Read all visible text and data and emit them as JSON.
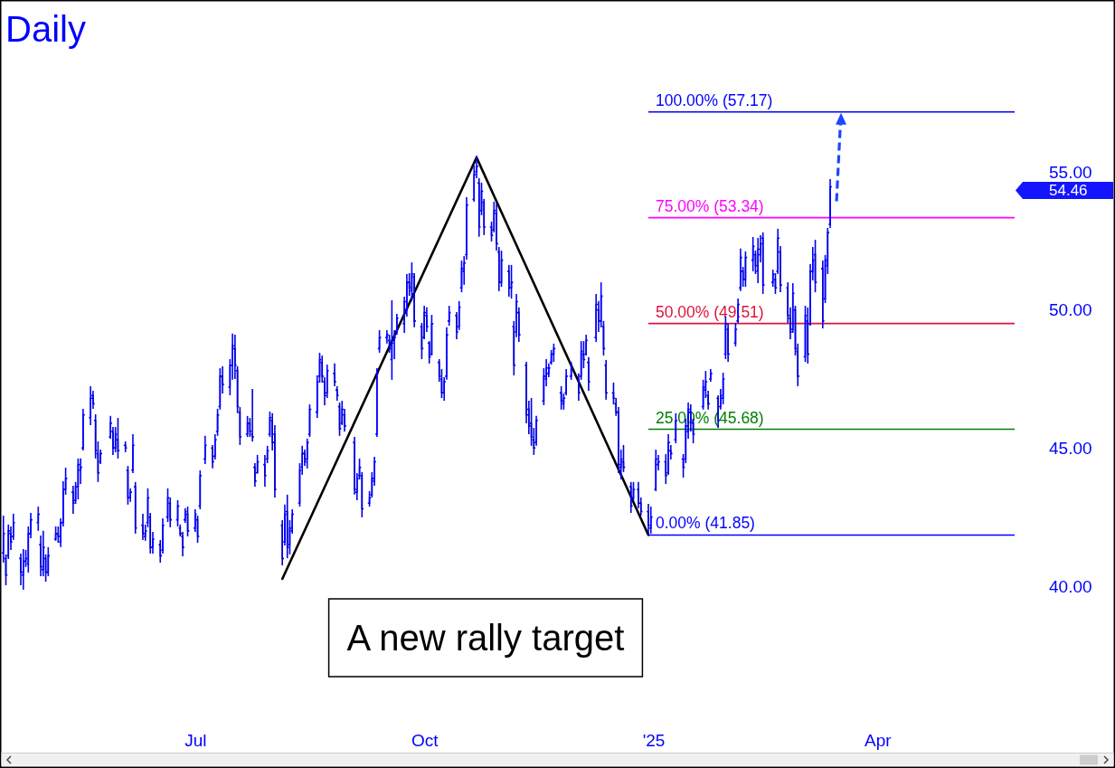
{
  "chart_data": {
    "type": "candlestick",
    "title": "Daily",
    "xlim": [
      "2024-04-14",
      "2025-07-05"
    ],
    "xticks": [
      {
        "value": "2024-07-01",
        "label": "Jul"
      },
      {
        "value": "2024-10-01",
        "label": "Oct"
      },
      {
        "value": "2025-01-01",
        "label": "'25"
      },
      {
        "value": "2025-04-01",
        "label": "Apr"
      }
    ],
    "ylim": [
      33.97,
      61.19
    ],
    "yticks": [
      {
        "value": 40,
        "label": "40.00"
      },
      {
        "value": 45,
        "label": "45.00"
      },
      {
        "value": 50,
        "label": "50.00"
      },
      {
        "value": 55,
        "label": "55.00"
      }
    ],
    "ref_lines": [
      {
        "axis": "y",
        "value": 57.17,
        "label": "100.00% (57.17)",
        "color": "#0000ff"
      },
      {
        "axis": "y",
        "value": 53.34,
        "label": "75.00% (53.34)",
        "color": "#ff00ff"
      },
      {
        "axis": "y",
        "value": 49.51,
        "label": "50.00% (49.51)",
        "color": "#dc143c"
      },
      {
        "axis": "y",
        "value": 45.68,
        "label": "25.00% (45.68)",
        "color": "#008000"
      },
      {
        "axis": "y",
        "value": 41.85,
        "label": "0.00% (41.85)",
        "color": "#0000ff"
      }
    ],
    "annotations": [
      "A new rally target",
      "54.46"
    ],
    "series": [
      {
        "type": "line",
        "color": "#000000",
        "x": [
          "2024-08-05",
          "2024-10-22",
          "2024-12-30"
        ],
        "values": [
          40.26,
          55.52,
          41.85
        ]
      },
      {
        "colors": [
          "#0000ff",
          "#0000d9",
          "#0000ff",
          "#0000d9",
          "#0000ff",
          "#0000d9",
          "#0000ff",
          "#0000ff",
          "#0000ff",
          "#0000ff",
          "#0000ff",
          "#0000d9",
          "#0000ff",
          "#0000d9",
          "#0000ff",
          "#0000ff",
          "#0000d9",
          "#0000ff",
          "#0000ff",
          "#0000ff",
          "#0000d9",
          "#0000ff",
          "#0000ff",
          "#0000ff",
          "#0000ff",
          "#0000ff",
          "#0000d9",
          "#0000d9",
          "#0000d9",
          "#0000ff",
          "#0000ff",
          "#0000d9",
          "#0000ff",
          "#0000d9",
          "#0000d9",
          "#0000d9",
          "#0000ff",
          "#0000ff",
          "#0000d9",
          "#0000d9",
          "#0000ff",
          "#0000ff",
          "#0000d9",
          "#0000ff",
          "#0000d9",
          "#0000ff",
          "#0000ff",
          "#0000d9",
          "#0000ff",
          "#0000d9",
          "#0000d9",
          "#0000ff",
          "#0000d9",
          "#0000ff",
          "#0000d9",
          "#0000ff",
          "#0000ff",
          "#0000d9",
          "#0000ff",
          "#0000ff",
          "#0000ff",
          "#0000d9",
          "#0000ff",
          "#0000ff",
          "#0000d9",
          "#0000d9",
          "#0000d9",
          "#0000ff",
          "#0000d9",
          "#0000d9",
          "#0000d9",
          "#0000ff",
          "#0000d9",
          "#0000ff",
          "#0000ff",
          "#0000d9",
          "#0000d9",
          "#0000d9",
          "#0000ff",
          "#0000d9",
          "#0000ff",
          "#0000ff",
          "#0000ff",
          "#0000ff",
          "#0000d9",
          "#0000ff",
          "#0000ff",
          "#0000ff",
          "#0000ff",
          "#0000d9",
          "#0000d9",
          "#0000ff",
          "#0000d9",
          "#0000d9",
          "#0000d9",
          "#0000ff",
          "#0000d9",
          "#0000d9",
          "#0000ff",
          "#0000ff",
          "#0000d9",
          "#0000ff",
          "#0000ff",
          "#0000ff",
          "#0000ff",
          "#0000ff",
          "#0000ff",
          "#0000d9",
          "#0000ff",
          "#0000ff",
          "#0000ff",
          "#0000ff",
          "#0000ff",
          "#0000d9",
          "#0000ff",
          "#0000d9",
          "#0000d9",
          "#0000ff",
          "#0000d9",
          "#0000d9",
          "#0000ff",
          "#0000d9",
          "#0000d9",
          "#0000ff",
          "#0000ff",
          "#0000ff",
          "#0000d9",
          "#0000ff",
          "#0000ff",
          "#0000ff",
          "#0000ff",
          "#0000ff",
          "#0000ff",
          "#0000d9",
          "#0000ff",
          "#0000d9",
          "#0000d9",
          "#0000ff",
          "#0000d9",
          "#0000d9",
          "#0000ff",
          "#0000d9",
          "#0000ff",
          "#0000d9",
          "#0000ff",
          "#0000d9",
          "#0000d9",
          "#0000d9",
          "#0000d9",
          "#0000d9",
          "#0000ff",
          "#0000ff",
          "#0000ff",
          "#0000ff",
          "#0000ff",
          "#0000ff",
          "#0000d9",
          "#0000ff",
          "#0000ff",
          "#0000ff",
          "#0000d9",
          "#0000ff",
          "#0000d9",
          "#0000ff",
          "#0000d9",
          "#0000ff",
          "#0000d9",
          "#0000ff",
          "#0000d9",
          "#0000d9",
          "#0000d9",
          "#0000d9",
          "#0000d9",
          "#0000ff",
          "#0000d9",
          "#0000d9",
          "#0000ff",
          "#0000d9",
          "#0000d9",
          "#0000d9",
          "#0000ff",
          "#0000ff",
          "#0000ff",
          "#0000d9",
          "#0000ff",
          "#0000d9",
          "#0000ff",
          "#0000d9",
          "#0000ff",
          "#0000ff",
          "#0000d9",
          "#0000d9",
          "#0000ff",
          "#0000ff",
          "#0000d9",
          "#0000ff",
          "#0000d9",
          "#0000ff",
          "#0000ff",
          "#0000ff",
          "#0000d9",
          "#0000ff",
          "#0000ff",
          "#0000ff",
          "#0000d9",
          "#0000ff",
          "#0000ff",
          "#0000d9",
          "#0000ff",
          "#0000ff",
          "#0000d9",
          "#0000ff",
          "#0000d9",
          "#0000ff",
          "#0000d9",
          "#0000d9",
          "#0000d9",
          "#0000ff",
          "#0000d9",
          "#0000d9",
          "#0000ff",
          "#0000d9",
          "#0000ff",
          "#0000ff",
          "#0000d9",
          "#0000d9",
          "#0000ff",
          "#0000ff",
          "#0000ff"
        ],
        "x": [
          "2024-04-15",
          "2024-04-16",
          "2024-04-17",
          "2024-04-18",
          "2024-04-19",
          "2024-04-22",
          "2024-04-23",
          "2024-04-24",
          "2024-04-25",
          "2024-04-26",
          "2024-04-29",
          "2024-04-30",
          "2024-05-01",
          "2024-05-02",
          "2024-05-03",
          "2024-05-06",
          "2024-05-07",
          "2024-05-08",
          "2024-05-09",
          "2024-05-10",
          "2024-05-13",
          "2024-05-14",
          "2024-05-15",
          "2024-05-16",
          "2024-05-17",
          "2024-05-20",
          "2024-05-21",
          "2024-05-22",
          "2024-05-23",
          "2024-05-24",
          "2024-05-28",
          "2024-05-29",
          "2024-05-30",
          "2024-05-31",
          "2024-06-03",
          "2024-06-04",
          "2024-06-05",
          "2024-06-06",
          "2024-06-07",
          "2024-06-10",
          "2024-06-11",
          "2024-06-12",
          "2024-06-13",
          "2024-06-14",
          "2024-06-17",
          "2024-06-18",
          "2024-06-20",
          "2024-06-21",
          "2024-06-24",
          "2024-06-25",
          "2024-06-26",
          "2024-06-27",
          "2024-06-28",
          "2024-07-01",
          "2024-07-02",
          "2024-07-03",
          "2024-07-05",
          "2024-07-08",
          "2024-07-09",
          "2024-07-10",
          "2024-07-11",
          "2024-07-12",
          "2024-07-15",
          "2024-07-16",
          "2024-07-17",
          "2024-07-18",
          "2024-07-19",
          "2024-07-22",
          "2024-07-23",
          "2024-07-24",
          "2024-07-25",
          "2024-07-26",
          "2024-07-29",
          "2024-07-30",
          "2024-07-31",
          "2024-08-01",
          "2024-08-02",
          "2024-08-05",
          "2024-08-06",
          "2024-08-07",
          "2024-08-08",
          "2024-08-09",
          "2024-08-12",
          "2024-08-13",
          "2024-08-14",
          "2024-08-15",
          "2024-08-16",
          "2024-08-19",
          "2024-08-20",
          "2024-08-21",
          "2024-08-22",
          "2024-08-23",
          "2024-08-26",
          "2024-08-27",
          "2024-08-28",
          "2024-08-29",
          "2024-08-30",
          "2024-09-03",
          "2024-09-04",
          "2024-09-05",
          "2024-09-06",
          "2024-09-09",
          "2024-09-10",
          "2024-09-11",
          "2024-09-12",
          "2024-09-13",
          "2024-09-16",
          "2024-09-17",
          "2024-09-18",
          "2024-09-19",
          "2024-09-20",
          "2024-09-23",
          "2024-09-24",
          "2024-09-25",
          "2024-09-26",
          "2024-09-27",
          "2024-09-30",
          "2024-10-01",
          "2024-10-02",
          "2024-10-03",
          "2024-10-04",
          "2024-10-07",
          "2024-10-08",
          "2024-10-09",
          "2024-10-10",
          "2024-10-11",
          "2024-10-14",
          "2024-10-15",
          "2024-10-16",
          "2024-10-17",
          "2024-10-18",
          "2024-10-21",
          "2024-10-22",
          "2024-10-23",
          "2024-10-24",
          "2024-10-25",
          "2024-10-28",
          "2024-10-29",
          "2024-10-30",
          "2024-10-31",
          "2024-11-01",
          "2024-11-04",
          "2024-11-05",
          "2024-11-06",
          "2024-11-07",
          "2024-11-08",
          "2024-11-11",
          "2024-11-12",
          "2024-11-13",
          "2024-11-14",
          "2024-11-15",
          "2024-11-18",
          "2024-11-19",
          "2024-11-20",
          "2024-11-21",
          "2024-11-22",
          "2024-11-25",
          "2024-11-26",
          "2024-11-27",
          "2024-11-29",
          "2024-12-02",
          "2024-12-03",
          "2024-12-04",
          "2024-12-05",
          "2024-12-06",
          "2024-12-09",
          "2024-12-10",
          "2024-12-11",
          "2024-12-12",
          "2024-12-13",
          "2024-12-16",
          "2024-12-17",
          "2024-12-18",
          "2024-12-19",
          "2024-12-20",
          "2024-12-23",
          "2024-12-24",
          "2024-12-26",
          "2024-12-27",
          "2024-12-30",
          "2024-12-31",
          "2025-01-02",
          "2025-01-03",
          "2025-01-06",
          "2025-01-07",
          "2025-01-08",
          "2025-01-10",
          "2025-01-13",
          "2025-01-14",
          "2025-01-15",
          "2025-01-16",
          "2025-01-17",
          "2025-01-21",
          "2025-01-22",
          "2025-01-23",
          "2025-01-24",
          "2025-01-27",
          "2025-01-28",
          "2025-01-29",
          "2025-01-30",
          "2025-01-31",
          "2025-02-03",
          "2025-02-04",
          "2025-02-05",
          "2025-02-06",
          "2025-02-07",
          "2025-02-10",
          "2025-02-11",
          "2025-02-12",
          "2025-02-13",
          "2025-02-14",
          "2025-02-18",
          "2025-02-19",
          "2025-02-20",
          "2025-02-21",
          "2025-02-24",
          "2025-02-25",
          "2025-02-26",
          "2025-02-27",
          "2025-02-28",
          "2025-03-03",
          "2025-03-04",
          "2025-03-05",
          "2025-03-06",
          "2025-03-07",
          "2025-03-10",
          "2025-03-11",
          "2025-03-12",
          "2025-03-13"
        ],
        "ohlc": [
          [
            41.2,
            42.55,
            40.85,
            41.9
          ],
          [
            41.0,
            41.15,
            40.03,
            40.4
          ],
          [
            41.1,
            42.23,
            40.98,
            42.0
          ],
          [
            41.9,
            42.16,
            41.31,
            41.6
          ],
          [
            41.8,
            42.62,
            41.67,
            42.3
          ],
          [
            41.0,
            41.18,
            40.03,
            40.5
          ],
          [
            40.4,
            41.34,
            39.87,
            40.9
          ],
          [
            40.9,
            41.31,
            40.69,
            41.0
          ],
          [
            40.8,
            42.16,
            40.49,
            41.9
          ],
          [
            41.9,
            42.65,
            41.73,
            42.4
          ],
          [
            42.3,
            42.88,
            42.0,
            42.6
          ],
          [
            41.5,
            41.83,
            40.36,
            40.7
          ],
          [
            40.6,
            42.0,
            40.36,
            41.4
          ],
          [
            41.0,
            41.15,
            40.16,
            40.5
          ],
          [
            40.5,
            41.41,
            40.36,
            41.1
          ],
          [
            41.7,
            42.16,
            41.64,
            41.9
          ],
          [
            41.9,
            42.16,
            41.57,
            41.8
          ],
          [
            41.6,
            42.45,
            41.41,
            42.3
          ],
          [
            42.3,
            43.8,
            42.16,
            43.5
          ],
          [
            43.5,
            44.29,
            43.31,
            43.9
          ],
          [
            43.4,
            43.63,
            42.62,
            43.0
          ],
          [
            43.1,
            43.77,
            42.98,
            43.6
          ],
          [
            43.6,
            44.62,
            43.14,
            44.4
          ],
          [
            44.2,
            44.62,
            43.7,
            44.3
          ],
          [
            45.0,
            46.42,
            44.91,
            46.2
          ],
          [
            46.1,
            47.24,
            45.83,
            46.8
          ],
          [
            46.9,
            47.07,
            46.42,
            46.6
          ],
          [
            46.0,
            46.22,
            44.62,
            44.9
          ],
          [
            44.8,
            45.24,
            43.77,
            44.1
          ],
          [
            44.5,
            44.94,
            44.42,
            44.8
          ],
          [
            45.4,
            46.16,
            45.34,
            45.9
          ],
          [
            45.6,
            45.76,
            44.75,
            45.0
          ],
          [
            45.0,
            45.76,
            44.85,
            45.5
          ],
          [
            45.3,
            46.09,
            44.62,
            44.9
          ],
          [
            45.1,
            45.24,
            44.85,
            45.0
          ],
          [
            44.2,
            44.35,
            42.95,
            43.2
          ],
          [
            43.2,
            43.54,
            43.05,
            43.4
          ],
          [
            44.2,
            45.5,
            44.09,
            45.1
          ],
          [
            43.6,
            43.77,
            41.9,
            42.1
          ],
          [
            42.2,
            42.62,
            41.67,
            41.9
          ],
          [
            41.8,
            42.23,
            41.64,
            42.0
          ],
          [
            42.3,
            43.54,
            42.13,
            43.2
          ],
          [
            42.5,
            42.65,
            41.18,
            41.4
          ],
          [
            41.4,
            41.96,
            41.18,
            41.7
          ],
          [
            41.5,
            41.67,
            40.85,
            41.1
          ],
          [
            41.3,
            42.45,
            41.18,
            42.2
          ],
          [
            42.5,
            43.54,
            42.32,
            43.2
          ],
          [
            43.0,
            43.21,
            42.13,
            42.4
          ],
          [
            42.4,
            43.11,
            42.16,
            42.9
          ],
          [
            42.1,
            42.23,
            41.8,
            41.9
          ],
          [
            41.8,
            41.96,
            41.08,
            41.4
          ],
          [
            42.4,
            42.82,
            42.29,
            42.7
          ],
          [
            42.6,
            42.88,
            41.8,
            42.0
          ],
          [
            42.1,
            42.78,
            41.96,
            42.6
          ],
          [
            42.4,
            42.55,
            41.57,
            41.8
          ],
          [
            42.9,
            44.19,
            42.78,
            44.0
          ],
          [
            44.6,
            45.44,
            44.42,
            45.1
          ],
          [
            45.0,
            45.11,
            44.26,
            44.5
          ],
          [
            44.7,
            45.5,
            44.58,
            45.3
          ],
          [
            45.6,
            46.42,
            45.44,
            46.2
          ],
          [
            46.5,
            47.89,
            46.39,
            47.6
          ],
          [
            47.6,
            47.96,
            46.97,
            47.3
          ],
          [
            47.2,
            48.22,
            46.91,
            48.0
          ],
          [
            48.0,
            49.14,
            47.47,
            48.7
          ],
          [
            48.6,
            49.1,
            47.5,
            48.0
          ],
          [
            47.8,
            47.96,
            46.26,
            46.5
          ],
          [
            46.3,
            46.48,
            45.11,
            45.4
          ],
          [
            45.5,
            46.16,
            45.4,
            45.9
          ],
          [
            45.9,
            46.09,
            45.4,
            45.6
          ],
          [
            45.5,
            47.14,
            45.24,
            45.4
          ],
          [
            44.3,
            44.45,
            43.6,
            43.8
          ],
          [
            44.1,
            44.75,
            44.09,
            44.5
          ],
          [
            44.4,
            44.75,
            43.6,
            44.0
          ],
          [
            44.6,
            45.08,
            44.45,
            44.9
          ],
          [
            45.5,
            46.32,
            45.4,
            46.1
          ],
          [
            46.0,
            46.26,
            44.91,
            45.2
          ],
          [
            45.5,
            45.83,
            43.21,
            43.5
          ],
          [
            42.2,
            42.39,
            40.75,
            41.0
          ],
          [
            41.6,
            42.95,
            41.47,
            42.6
          ],
          [
            42.7,
            43.31,
            41.01,
            41.4
          ],
          [
            41.5,
            42.39,
            41.15,
            42.1
          ],
          [
            42.0,
            42.78,
            41.9,
            42.6
          ],
          [
            43.0,
            44.45,
            42.88,
            44.2
          ],
          [
            44.3,
            45.08,
            44.03,
            44.8
          ],
          [
            44.8,
            44.94,
            44.35,
            44.5
          ],
          [
            44.6,
            45.34,
            44.26,
            45.2
          ],
          [
            45.5,
            46.58,
            45.4,
            46.4
          ],
          [
            46.3,
            47.63,
            46.09,
            47.4
          ],
          [
            47.6,
            48.45,
            47.37,
            48.2
          ],
          [
            48.1,
            48.35,
            47.37,
            47.6
          ],
          [
            47.4,
            47.56,
            46.55,
            46.9
          ],
          [
            47.0,
            48.02,
            46.81,
            47.8
          ],
          [
            47.7,
            48.06,
            47.24,
            47.4
          ],
          [
            47.1,
            47.24,
            46.71,
            46.9
          ],
          [
            46.5,
            46.65,
            45.44,
            45.7
          ],
          [
            45.9,
            46.71,
            45.83,
            46.4
          ],
          [
            46.2,
            46.42,
            45.6,
            45.8
          ],
          [
            45.2,
            45.4,
            43.31,
            43.5
          ],
          [
            43.4,
            44.09,
            43.11,
            43.9
          ],
          [
            44.0,
            44.62,
            43.86,
            44.3
          ],
          [
            44.0,
            44.13,
            42.49,
            42.8
          ],
          [
            43.0,
            43.44,
            42.88,
            43.2
          ],
          [
            43.3,
            44.13,
            43.21,
            43.9
          ],
          [
            43.8,
            44.68,
            43.63,
            44.5
          ],
          [
            45.5,
            47.89,
            45.4,
            47.7
          ],
          [
            48.6,
            49.27,
            48.45,
            49.0
          ],
          [
            49.0,
            49.27,
            48.78,
            49.1
          ],
          [
            48.9,
            49.1,
            48.45,
            48.6
          ],
          [
            48.2,
            50.35,
            47.47,
            48.8
          ],
          [
            48.9,
            49.27,
            48.22,
            49.0
          ],
          [
            49.2,
            49.86,
            49.1,
            49.7
          ],
          [
            49.5,
            50.48,
            49.17,
            50.3
          ],
          [
            50.0,
            51.3,
            49.76,
            51.0
          ],
          [
            51.0,
            51.33,
            50.51,
            50.8
          ],
          [
            50.7,
            51.72,
            50.32,
            51.3
          ],
          [
            51.2,
            51.33,
            49.37,
            49.6
          ],
          [
            49.4,
            49.53,
            48.22,
            48.6
          ],
          [
            49.0,
            50.15,
            48.94,
            49.9
          ],
          [
            49.8,
            50.09,
            49.2,
            49.4
          ],
          [
            48.8,
            48.87,
            48.06,
            48.3
          ],
          [
            48.4,
            49.82,
            48.35,
            49.5
          ],
          [
            48.1,
            48.22,
            47.4,
            47.6
          ],
          [
            47.5,
            47.86,
            46.81,
            47.0
          ],
          [
            47.0,
            47.56,
            46.71,
            47.4
          ],
          [
            47.6,
            49.37,
            47.47,
            49.1
          ],
          [
            49.6,
            50.15,
            49.43,
            49.9
          ],
          [
            49.8,
            49.92,
            48.94,
            49.2
          ],
          [
            49.4,
            50.32,
            49.27,
            50.1
          ],
          [
            50.8,
            51.79,
            50.64,
            51.5
          ],
          [
            51.4,
            51.95,
            50.91,
            51.7
          ],
          [
            52.0,
            54.08,
            51.82,
            53.8
          ],
          [
            54.0,
            55.23,
            53.92,
            54.9
          ],
          [
            55.0,
            55.59,
            54.77,
            55.2
          ],
          [
            54.6,
            54.77,
            52.65,
            53.0
          ],
          [
            53.6,
            54.61,
            53.43,
            54.3
          ],
          [
            53.9,
            54.02,
            52.71,
            53.0
          ],
          [
            53.0,
            53.2,
            52.48,
            52.7
          ],
          [
            52.9,
            53.92,
            52.81,
            53.6
          ],
          [
            53.5,
            53.85,
            52.15,
            52.4
          ],
          [
            52.1,
            52.28,
            50.68,
            51.0
          ],
          [
            51.0,
            52.15,
            50.84,
            51.8
          ],
          [
            51.4,
            51.63,
            50.48,
            50.8
          ],
          [
            50.8,
            51.63,
            50.41,
            51.0
          ],
          [
            49.4,
            49.6,
            47.63,
            48.0
          ],
          [
            49.2,
            50.58,
            49.01,
            50.3
          ],
          [
            49.9,
            50.09,
            48.84,
            49.1
          ],
          [
            48.0,
            48.12,
            45.89,
            46.2
          ],
          [
            46.4,
            46.71,
            45.5,
            45.8
          ],
          [
            45.9,
            46.81,
            45.08,
            45.4
          ],
          [
            45.3,
            45.73,
            44.75,
            45.0
          ],
          [
            45.2,
            46.16,
            45.08,
            46.0
          ],
          [
            46.7,
            47.89,
            46.55,
            47.6
          ],
          [
            47.5,
            48.22,
            47.24,
            47.9
          ],
          [
            47.7,
            48.06,
            47.56,
            47.9
          ],
          [
            48.1,
            48.55,
            48.02,
            48.4
          ],
          [
            48.4,
            48.78,
            48.12,
            48.6
          ],
          [
            47.0,
            47.24,
            46.39,
            46.7
          ],
          [
            46.6,
            46.97,
            46.39,
            46.8
          ],
          [
            47.0,
            47.86,
            46.91,
            47.6
          ],
          [
            47.6,
            48.12,
            47.47,
            47.9
          ],
          [
            47.5,
            47.7,
            46.71,
            47.0
          ],
          [
            47.6,
            48.87,
            47.47,
            48.5
          ],
          [
            48.4,
            48.87,
            47.89,
            48.2
          ],
          [
            48.4,
            49.1,
            48.35,
            48.9
          ],
          [
            48.1,
            48.29,
            47.07,
            47.4
          ],
          [
            49.0,
            50.58,
            48.84,
            50.2
          ],
          [
            50.0,
            50.32,
            49.2,
            49.6
          ],
          [
            49.6,
            51.0,
            49.37,
            50.5
          ],
          [
            49.4,
            49.6,
            48.35,
            48.6
          ],
          [
            48.0,
            48.19,
            46.75,
            47.0
          ],
          [
            47.0,
            47.37,
            46.58,
            46.8
          ],
          [
            46.6,
            46.81,
            46.16,
            46.3
          ],
          [
            46.3,
            46.48,
            44.09,
            44.4
          ],
          [
            44.3,
            44.94,
            43.86,
            44.6
          ],
          [
            44.5,
            45.11,
            44.13,
            44.3
          ],
          [
            43.6,
            43.77,
            42.65,
            42.9
          ],
          [
            43.2,
            43.77,
            43.11,
            43.5
          ],
          [
            43.5,
            43.77,
            42.82,
            43.0
          ],
          [
            43.0,
            43.21,
            42.55,
            42.7
          ],
          [
            42.7,
            42.98,
            41.85,
            42.2
          ],
          [
            42.1,
            42.88,
            41.9,
            42.5
          ],
          [
            43.5,
            44.94,
            43.44,
            44.6
          ],
          [
            44.4,
            44.75,
            44.19,
            44.5
          ],
          [
            44.5,
            44.78,
            43.7,
            44.0
          ],
          [
            44.1,
            45.5,
            44.03,
            45.2
          ],
          [
            44.9,
            45.11,
            44.58,
            44.8
          ],
          [
            45.3,
            46.26,
            45.17,
            46.0
          ],
          [
            44.6,
            44.78,
            43.93,
            44.3
          ],
          [
            44.6,
            46.06,
            44.45,
            45.8
          ],
          [
            45.6,
            46.65,
            45.34,
            46.4
          ],
          [
            46.3,
            46.58,
            45.6,
            46.0
          ],
          [
            45.9,
            46.06,
            45.17,
            45.5
          ],
          [
            46.5,
            47.47,
            46.39,
            47.2
          ],
          [
            47.1,
            47.79,
            46.81,
            47.4
          ],
          [
            46.9,
            47.07,
            46.39,
            46.6
          ],
          [
            47.5,
            47.86,
            47.4,
            47.7
          ],
          [
            46.8,
            46.91,
            45.73,
            46.0
          ],
          [
            46.5,
            47.14,
            46.39,
            46.9
          ],
          [
            46.8,
            47.73,
            46.58,
            47.5
          ],
          [
            48.4,
            49.76,
            48.22,
            49.5
          ],
          [
            49.3,
            49.5,
            48.12,
            48.4
          ],
          [
            48.8,
            49.53,
            48.68,
            49.3
          ],
          [
            49.6,
            50.41,
            49.53,
            50.2
          ],
          [
            50.8,
            52.22,
            50.68,
            51.9
          ],
          [
            51.4,
            51.56,
            50.84,
            51.1
          ],
          [
            51.1,
            52.12,
            50.84,
            51.9
          ],
          [
            51.8,
            52.64,
            51.4,
            52.3
          ],
          [
            52.0,
            52.15,
            51.3,
            51.6
          ],
          [
            51.4,
            52.61,
            50.97,
            52.2
          ],
          [
            52.0,
            52.71,
            51.72,
            52.4
          ],
          [
            52.6,
            52.81,
            50.58,
            50.9
          ],
          [
            51.0,
            51.46,
            50.84,
            51.3
          ],
          [
            51.1,
            51.33,
            50.58,
            50.8
          ],
          [
            51.4,
            52.94,
            51.3,
            52.6
          ],
          [
            52.1,
            52.31,
            50.64,
            50.9
          ],
          [
            50.8,
            51.0,
            49.53,
            49.8
          ],
          [
            49.7,
            50.09,
            48.94,
            49.2
          ],
          [
            49.3,
            50.97,
            49.17,
            50.6
          ],
          [
            50.0,
            50.15,
            48.35,
            48.6
          ],
          [
            48.5,
            48.78,
            47.24,
            47.6
          ],
          [
            48.3,
            50.15,
            48.12,
            49.8
          ],
          [
            49.6,
            50.09,
            48.06,
            48.4
          ],
          [
            49.5,
            51.66,
            49.43,
            51.4
          ],
          [
            51.4,
            52.28,
            51.07,
            51.8
          ],
          [
            52.0,
            52.54,
            50.64,
            51.0
          ],
          [
            51.5,
            51.79,
            49.33,
            49.6
          ],
          [
            50.4,
            51.99,
            50.25,
            51.8
          ],
          [
            51.6,
            52.97,
            51.3,
            52.8
          ],
          [
            53.1,
            54.74,
            52.97,
            54.46
          ]
        ]
      }
    ]
  }
}
